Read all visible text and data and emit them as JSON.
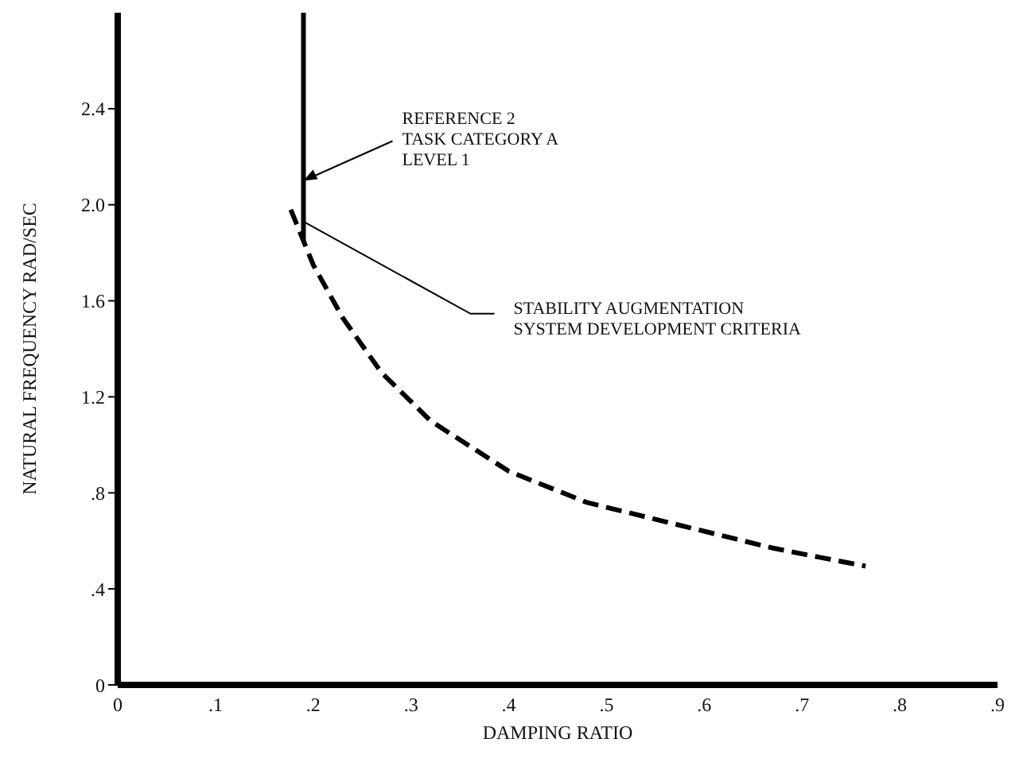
{
  "chart_data": {
    "type": "line",
    "xlabel": "DAMPING RATIO",
    "ylabel": "NATURAL FREQUENCY RAD/SEC",
    "xlim": [
      0,
      0.9
    ],
    "ylim": [
      0,
      2.8
    ],
    "xticks": [
      0,
      {
        "value": 0.1,
        "label": ".1"
      },
      {
        "value": 0.2,
        "label": ".2"
      },
      {
        "value": 0.3,
        "label": ".3"
      },
      {
        "value": 0.4,
        "label": ".4"
      },
      {
        "value": 0.5,
        "label": ".5"
      },
      {
        "value": 0.6,
        "label": ".6"
      },
      {
        "value": 0.7,
        "label": ".7"
      },
      {
        "value": 0.8,
        "label": ".8"
      },
      {
        "value": 0.9,
        "label": ".9"
      }
    ],
    "yticks": [
      0,
      {
        "value": 0.4,
        "label": ".4"
      },
      {
        "value": 0.8,
        "label": ".8"
      },
      1.2,
      1.6,
      {
        "value": 2.0,
        "label": "2.0"
      },
      2.4
    ],
    "grid": false,
    "marker": "none",
    "series": [
      {
        "color": "#000000",
        "line_style": "solid",
        "x": [
          0.19,
          0.19
        ],
        "values": [
          1.85,
          2.8
        ]
      },
      {
        "color": "#000000",
        "line_style": "dashed",
        "x": [
          0.177,
          0.2,
          0.23,
          0.27,
          0.32,
          0.4,
          0.48,
          0.56,
          0.62,
          0.67,
          0.72,
          0.765
        ],
        "values": [
          1.98,
          1.75,
          1.53,
          1.3,
          1.1,
          0.89,
          0.76,
          0.68,
          0.62,
          0.57,
          0.53,
          0.495
        ]
      }
    ],
    "annotations": [
      {
        "text": "REFERENCE 2\nTASK CATEGORY A\nLEVEL 1",
        "x": 0.19,
        "y": 2.1
      },
      {
        "text": "STABILITY AUGMENTATION\nSYSTEM DEVELOPMENT CRITERIA",
        "x": 0.19,
        "y": 1.93
      }
    ]
  }
}
